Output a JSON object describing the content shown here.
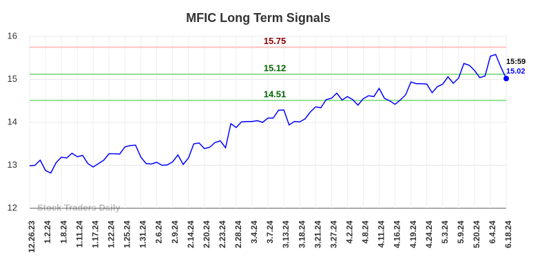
{
  "chart_data": {
    "type": "line",
    "title": "MFIC Long Term Signals",
    "categories": [
      "12.26.23",
      null,
      null,
      "1.2.24",
      null,
      null,
      "1.8.24",
      null,
      null,
      "1.11.24",
      null,
      null,
      "1.17.24",
      null,
      null,
      "1.22.24",
      null,
      null,
      "1.25.24",
      null,
      null,
      "1.31.24",
      null,
      null,
      "2.6.24",
      null,
      null,
      "2.9.24",
      null,
      null,
      "2.14.24",
      null,
      null,
      "2.20.24",
      null,
      null,
      "2.23.24",
      null,
      null,
      "2.28.24",
      null,
      null,
      "3.4.24",
      null,
      null,
      "3.7.24",
      null,
      null,
      "3.13.24",
      null,
      null,
      "3.18.24",
      null,
      null,
      "3.21.24",
      null,
      null,
      "3.27.24",
      null,
      null,
      "4.2.24",
      null,
      null,
      "4.8.24",
      null,
      null,
      "4.11.24",
      null,
      null,
      "4.16.24",
      null,
      null,
      "4.19.24",
      null,
      null,
      "4.24.24",
      null,
      null,
      "5.3.24",
      null,
      null,
      "5.9.24",
      null,
      null,
      "5.20.24",
      null,
      null,
      "6.4.24",
      null,
      null,
      "6.18.24"
    ],
    "values": [
      12.99,
      13.0,
      13.12,
      12.88,
      12.82,
      13.06,
      13.19,
      13.17,
      13.28,
      13.2,
      13.23,
      13.04,
      12.96,
      13.04,
      13.12,
      13.27,
      13.27,
      13.26,
      13.43,
      13.46,
      13.47,
      13.19,
      13.04,
      13.03,
      13.07,
      13.0,
      13.01,
      13.08,
      13.24,
      13.02,
      13.17,
      13.5,
      13.52,
      13.39,
      13.42,
      13.53,
      13.57,
      13.41,
      13.97,
      13.88,
      14.01,
      14.02,
      14.02,
      14.04,
      14.0,
      14.1,
      14.1,
      14.28,
      14.29,
      13.94,
      14.02,
      14.01,
      14.08,
      14.24,
      14.36,
      14.34,
      14.53,
      14.56,
      14.68,
      14.52,
      14.6,
      14.53,
      14.4,
      14.55,
      14.62,
      14.6,
      14.79,
      14.56,
      14.5,
      14.42,
      14.52,
      14.64,
      14.94,
      14.9,
      14.9,
      14.89,
      14.69,
      14.83,
      14.89,
      15.06,
      14.91,
      15.03,
      15.37,
      15.33,
      15.21,
      15.04,
      15.08,
      15.54,
      15.58,
      15.28,
      15.02
    ],
    "color": "#0000ff",
    "ylim": [
      12,
      16
    ],
    "yticks": [
      12,
      13,
      14,
      15,
      16
    ],
    "grid": true,
    "hlines": [
      {
        "value": 15.75,
        "color": "#ffc0c0",
        "label_color": "#8b0000"
      },
      {
        "value": 15.12,
        "color": "#90e090",
        "label_color": "#006400"
      },
      {
        "value": 14.51,
        "color": "#90e090",
        "label_color": "#006400"
      }
    ],
    "last_time": "15:59",
    "watermark": "Stock Traders Daily"
  }
}
